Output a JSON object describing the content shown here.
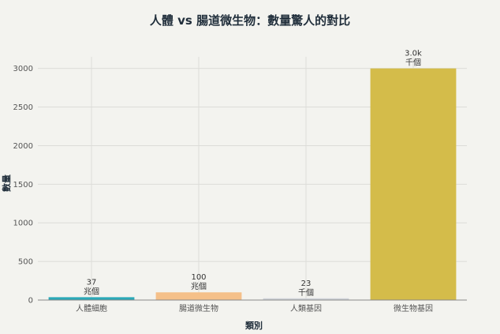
{
  "chart_data": {
    "type": "bar",
    "title": "人體 vs 腸道微生物：數量驚人的對比",
    "xlabel": "類別",
    "ylabel": "數量",
    "categories": [
      "人體細胞",
      "腸道微生物",
      "人類基因",
      "微生物基因"
    ],
    "values": [
      37,
      100,
      23,
      3000
    ],
    "labels": [
      [
        "37",
        "兆個"
      ],
      [
        "100",
        "兆個"
      ],
      [
        "23",
        "千個"
      ],
      [
        "3.0k",
        "千個"
      ]
    ],
    "colors": [
      "#2aa9b8",
      "#f5c089",
      "#cfd3d8",
      "#d4bc4a"
    ],
    "ylim": [
      0,
      3150
    ],
    "yticks": [
      0,
      500,
      1000,
      1500,
      2000,
      2500,
      3000
    ],
    "grid": true
  }
}
